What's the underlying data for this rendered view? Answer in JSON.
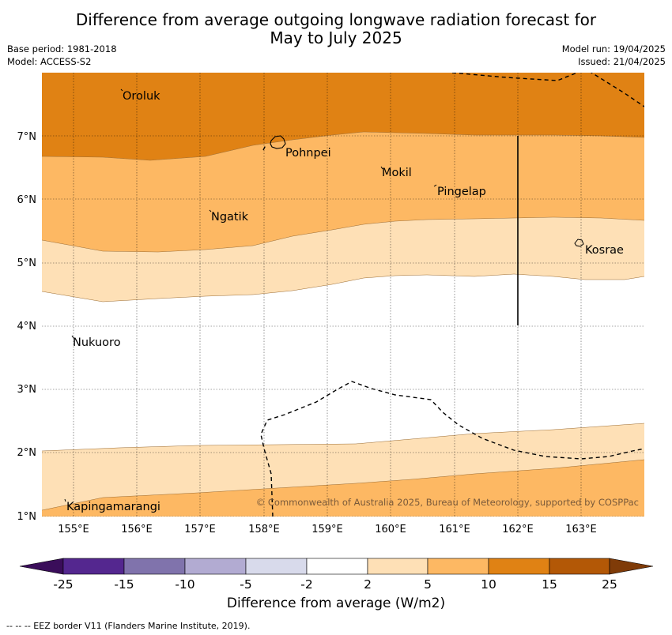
{
  "title_line1": "Difference from average outgoing longwave radiation forecast for",
  "title_line2": "May to July 2025",
  "base_period": "Base period: 1981-2018",
  "model": "Model: ACCESS-S2",
  "model_run": "Model run: 19/04/2025",
  "issued": "Issued: 21/04/2025",
  "copyright": "© Commonwealth of Australia 2025, Bureau of Meteorology, supported by COSPPac",
  "footnote": "--  --  -- EEZ border V11 (Flanders Marine Institute, 2019).",
  "map": {
    "lon_labels": [
      "155°E",
      "156°E",
      "157°E",
      "158°E",
      "159°E",
      "160°E",
      "161°E",
      "162°E",
      "163°E"
    ],
    "lat_labels": [
      "1°N",
      "2°N",
      "3°N",
      "4°N",
      "5°N",
      "6°N",
      "7°N"
    ],
    "lon_range": [
      154.5,
      164.0
    ],
    "lat_range": [
      1.0,
      8.0
    ],
    "places": [
      {
        "name": "Oroluk",
        "lon": 155.75,
        "lat": 7.65
      },
      {
        "name": "Pohnpei",
        "lon": 158.2,
        "lat": 6.85
      },
      {
        "name": "Mokil",
        "lon": 159.8,
        "lat": 6.7
      },
      {
        "name": "Pingelap",
        "lon": 160.7,
        "lat": 6.25
      },
      {
        "name": "Ngatik",
        "lon": 157.15,
        "lat": 5.8
      },
      {
        "name": "Kosrae",
        "lon": 163.0,
        "lat": 5.3
      },
      {
        "name": "Nukuoro",
        "lon": 154.9,
        "lat": 3.85
      },
      {
        "name": "Kapingamarangi",
        "lon": 154.8,
        "lat": 1.25
      }
    ]
  },
  "legend": {
    "title": "Difference from average (W/m2)",
    "tick_labels": [
      "-25",
      "-15",
      "-10",
      "-5",
      "-2",
      "2",
      "5",
      "10",
      "15",
      "25"
    ],
    "colors": [
      "#3a0d5a",
      "#54278f",
      "#8073ac",
      "#b2abd2",
      "#d8daeb",
      "#ffffff",
      "#fee0b6",
      "#fdb863",
      "#e08214",
      "#b35806",
      "#7f3b08"
    ]
  },
  "colors": {
    "band_10_15": "#e08214",
    "band_5_10": "#fdb863",
    "band_2_5": "#fee0b6",
    "neutral": "#ffffff"
  }
}
